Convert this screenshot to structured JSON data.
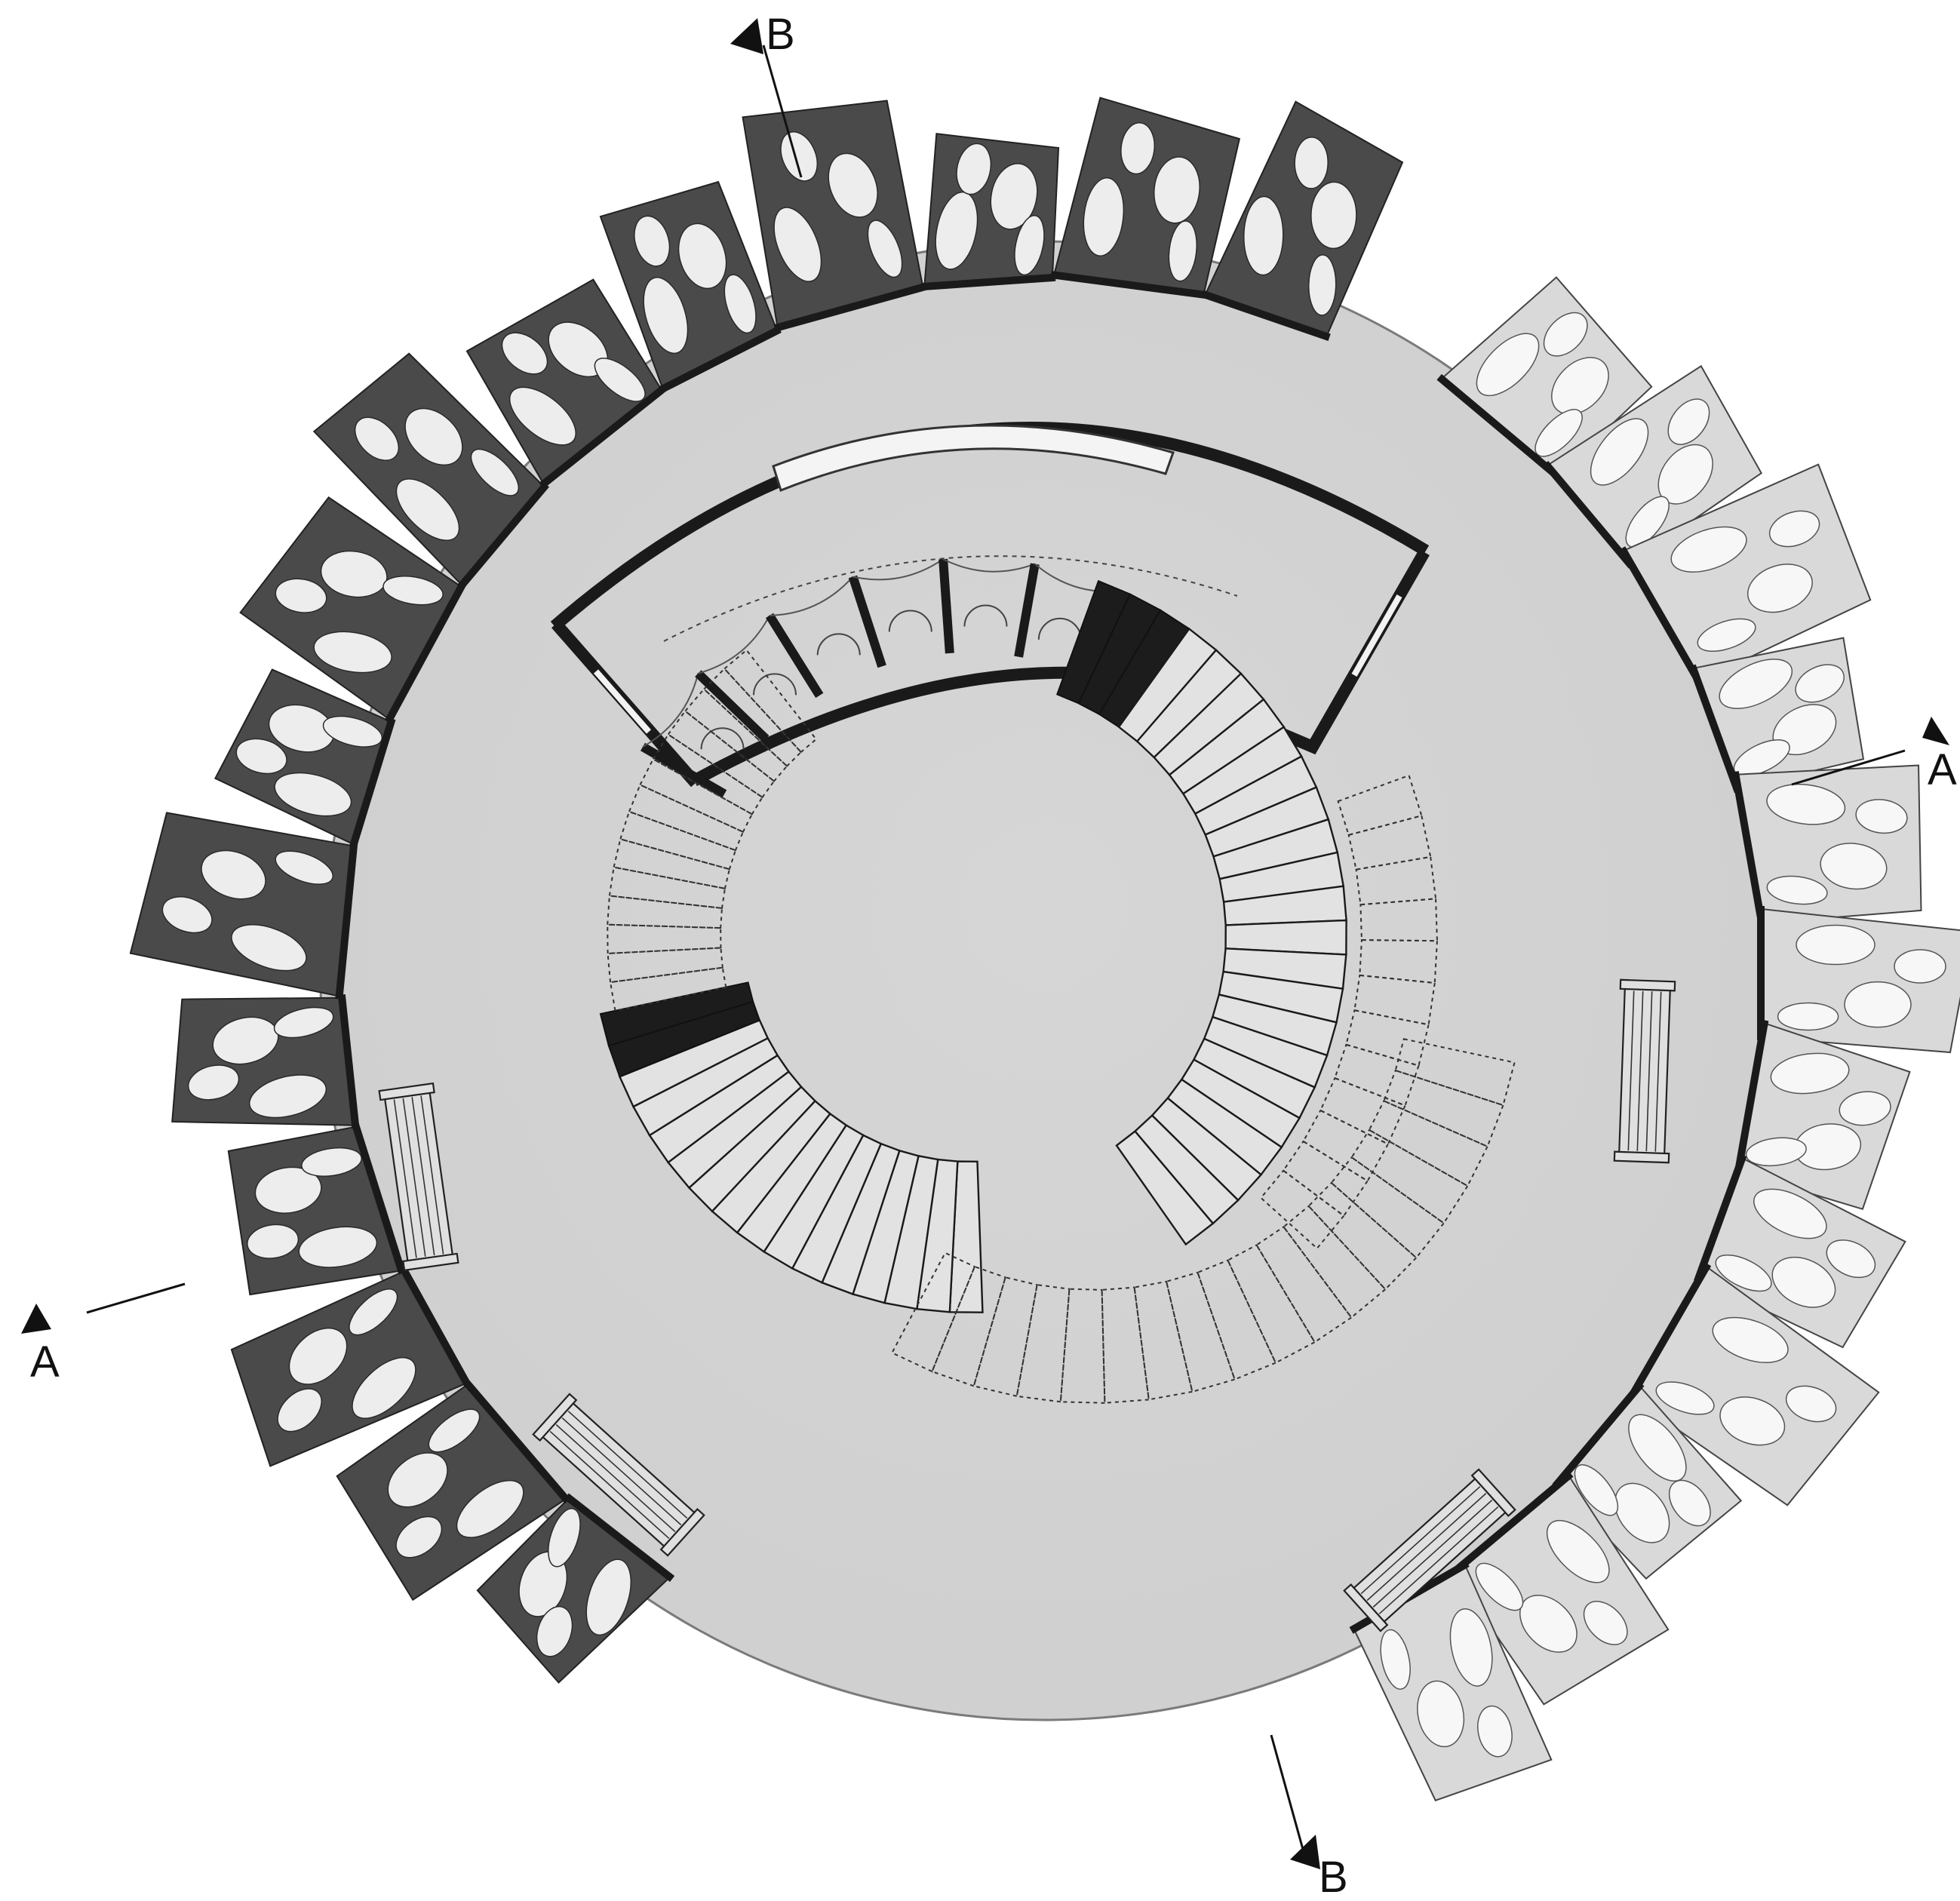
{
  "section_markers": [
    {
      "id": "A-west",
      "label": "A"
    },
    {
      "id": "A-east",
      "label": "A"
    },
    {
      "id": "B-north",
      "label": "B"
    },
    {
      "id": "B-south",
      "label": "B"
    }
  ],
  "stairs": [
    {
      "id": "stair-east-solid",
      "style": "solid",
      "treads": 24
    },
    {
      "id": "stair-south-solid",
      "style": "solid",
      "treads": 16
    },
    {
      "id": "stair-west-dashed",
      "style": "dashed",
      "treads": 14
    },
    {
      "id": "stair-southeast-dashed",
      "style": "dashed",
      "treads": 18
    },
    {
      "id": "stair-east-dashed",
      "style": "dashed",
      "treads": 12
    }
  ],
  "benches": [
    {
      "id": "bench-west"
    },
    {
      "id": "bench-southwest"
    },
    {
      "id": "bench-east"
    },
    {
      "id": "bench-southeast"
    }
  ],
  "colors": {
    "floor": "#d4d4d4",
    "wall": "#1a1a1a",
    "fin_dark": "#4a4a4a",
    "fin_light": "#d9d9d9"
  }
}
